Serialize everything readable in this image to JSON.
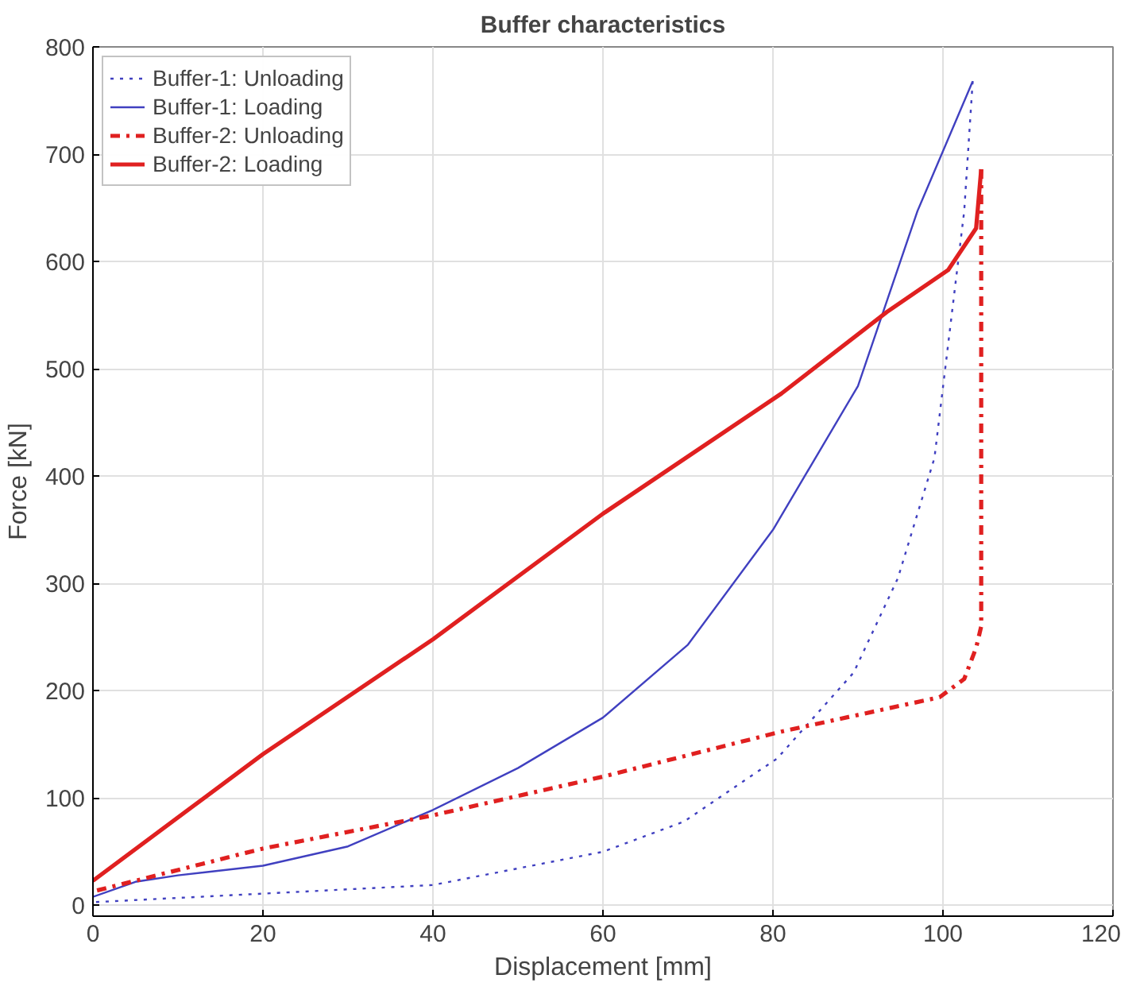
{
  "chart_data": {
    "type": "line",
    "title": "Buffer characteristics",
    "xlabel": "Displacement [mm]",
    "ylabel": "Force [kN]",
    "xlim": [
      0,
      120
    ],
    "ylim": [
      -10,
      800
    ],
    "xticks": [
      0,
      20,
      40,
      60,
      80,
      100,
      120
    ],
    "yticks": [
      0,
      100,
      200,
      300,
      400,
      500,
      600,
      700,
      800
    ],
    "grid": true,
    "legend": "top left",
    "series": [
      {
        "name": "Buffer-1: Unloading",
        "color": "#4040c0",
        "line_style": "dotted",
        "x": [
          103.5,
          102.5,
          99,
          94.7,
          89.5,
          80.5,
          69.5,
          60,
          40,
          20,
          0
        ],
        "values": [
          768,
          647,
          417,
          305,
          217,
          137,
          78,
          50,
          19,
          11,
          3
        ]
      },
      {
        "name": "Buffer-1: Loading",
        "color": "#4040c0",
        "line_style": "solid",
        "x": [
          0,
          5,
          10,
          20,
          30,
          40,
          50,
          60,
          70,
          80,
          90,
          97,
          103.5
        ],
        "values": [
          8,
          22,
          28,
          37,
          55,
          89,
          128,
          175,
          243,
          350,
          484,
          647,
          768
        ]
      },
      {
        "name": "Buffer-2: Unloading",
        "color": "#e02020",
        "line_style": "dashed",
        "x": [
          104.5,
          104.5,
          103.9,
          102.5,
          99.6,
          81,
          60,
          40,
          20,
          0
        ],
        "values": [
          686,
          260,
          240,
          211,
          194,
          162,
          120,
          84,
          53,
          13
        ]
      },
      {
        "name": "Buffer-2: Loading",
        "color": "#e02020",
        "line_style": "solid",
        "x": [
          0,
          20,
          40,
          60,
          81,
          93.4,
          100.6,
          103.9,
          104.5
        ],
        "values": [
          23,
          141,
          248,
          365,
          477,
          553,
          592,
          631,
          686
        ]
      }
    ]
  }
}
